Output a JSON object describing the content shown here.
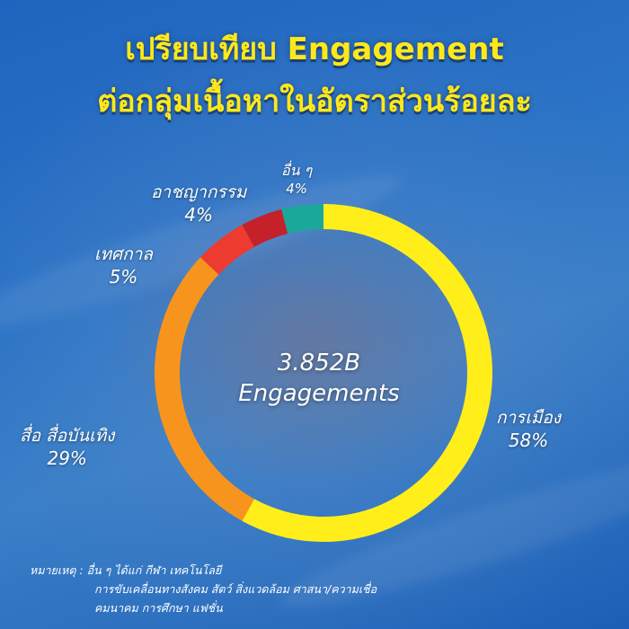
{
  "title": {
    "line1": "เปรียบเทียบ Engagement",
    "line2": "ต่อกลุ่มเนื้อหาในอัตราส่วนร้อยละ"
  },
  "center": {
    "value": "3.852B",
    "unit": "Engagements"
  },
  "note": {
    "prefix": "หมายเหตุ :",
    "line1": "อื่น ๆ ได้แก่ กีฬา เทคโนโลยี",
    "line2": "การขับเคลื่อนทางสังคม สัตว์ สิ่งแวดล้อม ศาสนา/ความเชื่อ",
    "line3": "คมนาคม การศึกษา แฟชั่น"
  },
  "chart_data": {
    "type": "pie",
    "variant": "donut",
    "categories": [
      "การเมือง",
      "สื่อ สื่อบันเทิง",
      "เทศกาล",
      "อาชญากรรม",
      "อื่น ๆ"
    ],
    "values": [
      58,
      29,
      5,
      4,
      4
    ],
    "value_labels": [
      "58%",
      "29%",
      "5%",
      "4%",
      "4%"
    ],
    "colors": [
      "#ffee1a",
      "#f7941d",
      "#ed3b2f",
      "#c4212b",
      "#1aa89a"
    ]
  }
}
